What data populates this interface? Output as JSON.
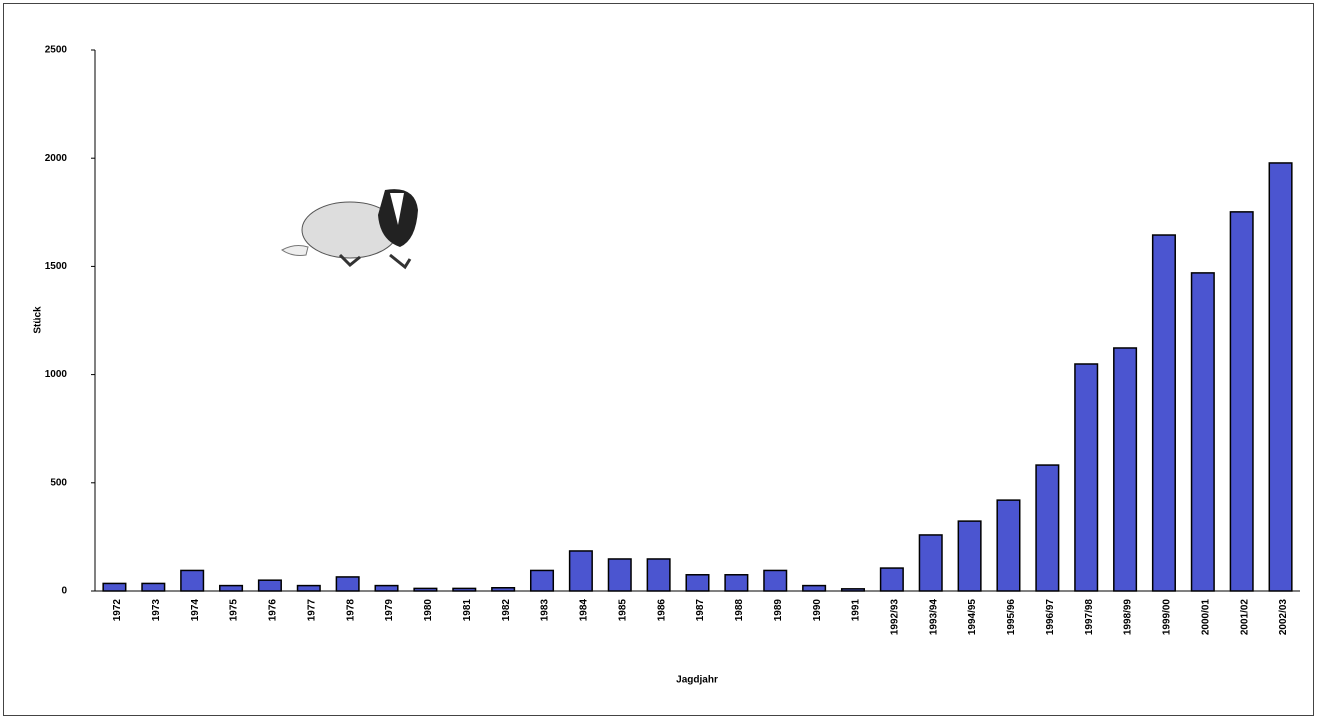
{
  "chart_data": {
    "type": "bar",
    "x_label": "Jagdjahr",
    "y_label": "Stück",
    "categories": [
      "1972",
      "1973",
      "1974",
      "1975",
      "1976",
      "1977",
      "1978",
      "1979",
      "1980",
      "1981",
      "1982",
      "1983",
      "1984",
      "1985",
      "1986",
      "1987",
      "1988",
      "1989",
      "1990",
      "1991",
      "1992/93",
      "1993/94",
      "1994/95",
      "1995/96",
      "1996/97",
      "1997/98",
      "1998/99",
      "1999/00",
      "2000/01",
      "2001/02",
      "2002/03"
    ],
    "values": [
      35,
      35,
      95,
      25,
      50,
      25,
      65,
      25,
      12,
      12,
      15,
      95,
      185,
      148,
      148,
      75,
      75,
      95,
      25,
      10,
      106,
      259,
      323,
      420,
      582,
      1049,
      1123,
      1645,
      1470,
      1752,
      1978
    ],
    "color": "#4b55d0",
    "ylim": [
      0,
      2500
    ],
    "yticks": [
      0,
      500,
      1000,
      1500,
      2000,
      2500
    ],
    "grid": false
  }
}
